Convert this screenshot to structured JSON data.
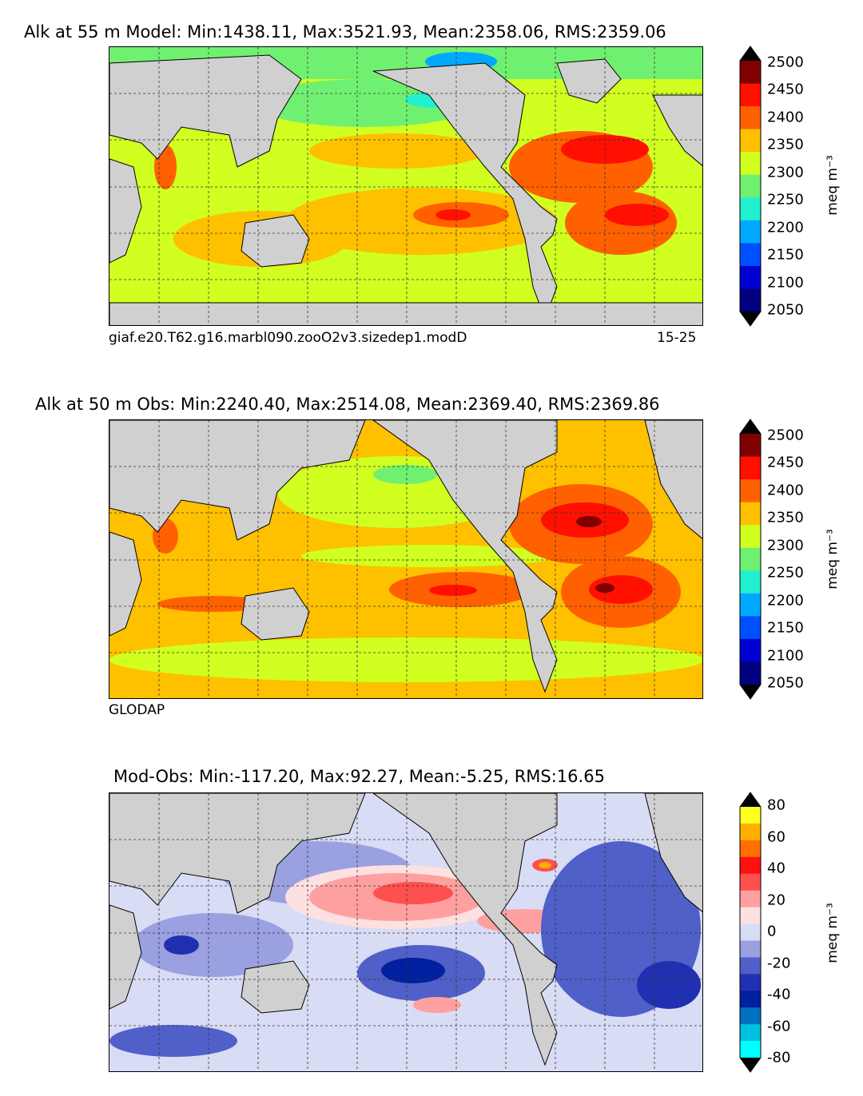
{
  "panels": [
    {
      "title": "Alk at 55 m Model: Min:1438.11, Max:3521.93, Mean:2358.06, RMS:2359.06",
      "caption_left": "giaf.e20.T62.g16.marbl090.zooO2v3.sizedep1.modD",
      "caption_right": "15-25",
      "colorbar": {
        "ticks": [
          "2500",
          "2450",
          "2400",
          "2350",
          "2300",
          "2250",
          "2200",
          "2150",
          "2100",
          "2050"
        ],
        "unit": "meq m⁻³",
        "colors": [
          "#000080",
          "#0000d0",
          "#0050ff",
          "#00a8ff",
          "#20f0d0",
          "#70f070",
          "#d0ff20",
          "#ffc000",
          "#ff6000",
          "#ff1000",
          "#800000"
        ]
      }
    },
    {
      "title": "Alk at 50 m Obs: Min:2240.40, Max:2514.08, Mean:2369.40, RMS:2369.86",
      "caption_left": "GLODAP",
      "caption_right": "",
      "colorbar": {
        "ticks": [
          "2500",
          "2450",
          "2400",
          "2350",
          "2300",
          "2250",
          "2200",
          "2150",
          "2100",
          "2050"
        ],
        "unit": "meq m⁻³",
        "colors": [
          "#000080",
          "#0000d0",
          "#0050ff",
          "#00a8ff",
          "#20f0d0",
          "#70f070",
          "#d0ff20",
          "#ffc000",
          "#ff6000",
          "#ff1000",
          "#800000"
        ]
      }
    },
    {
      "title": "Mod-Obs: Min:-117.20, Max:92.27, Mean:-5.25, RMS:16.65",
      "caption_left": "",
      "caption_right": "",
      "colorbar": {
        "ticks": [
          "80",
          "60",
          "40",
          "20",
          "0",
          "-20",
          "-40",
          "-60",
          "-80"
        ],
        "unit": "meq m⁻³",
        "colors": [
          "#00ffff",
          "#00c0e0",
          "#0070c0",
          "#0020a0",
          "#2030b0",
          "#5060c8",
          "#9aa0e0",
          "#d8dcf4",
          "#fde0e0",
          "#ffa0a0",
          "#ff5050",
          "#ff1010",
          "#ff7000",
          "#ffb000",
          "#ffff20"
        ]
      }
    }
  ]
}
